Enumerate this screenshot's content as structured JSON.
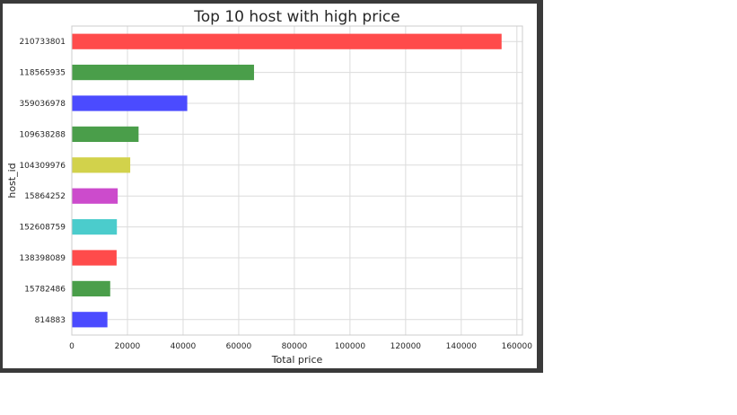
{
  "chart_data": {
    "type": "bar",
    "orientation": "horizontal",
    "title": "Top 10 host with high price",
    "xlabel": "Total price",
    "ylabel": "host_id",
    "categories": [
      "210733801",
      "118565935",
      "359036978",
      "109638288",
      "104309976",
      "15864252",
      "152608759",
      "138398089",
      "15782486",
      "814883"
    ],
    "values": [
      154500,
      65500,
      41500,
      24000,
      21000,
      16500,
      16200,
      16100,
      13800,
      12800
    ],
    "colors": [
      "#ff4b4b",
      "#4a9e4a",
      "#4b4bff",
      "#4a9e4a",
      "#d2d24b",
      "#cc4bcc",
      "#4bcccc",
      "#ff4b4b",
      "#4a9e4a",
      "#4b4bff"
    ],
    "xlim": [
      0,
      162000
    ],
    "xticks": [
      0,
      20000,
      40000,
      60000,
      80000,
      100000,
      120000,
      140000,
      160000
    ],
    "grid": true,
    "legend": false
  }
}
